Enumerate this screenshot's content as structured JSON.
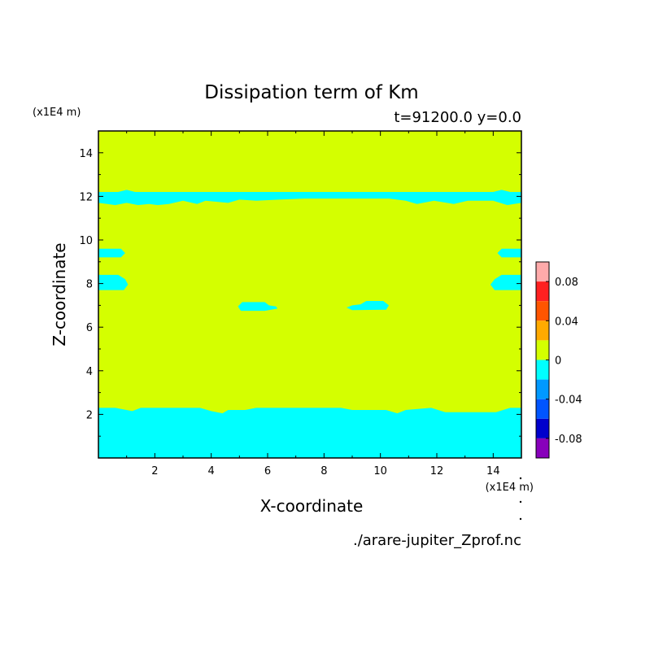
{
  "chart_data": {
    "type": "heatmap",
    "title": "Dissipation term of Km",
    "subtitle": "t=91200.0 y=0.0",
    "xlabel": "X-coordinate",
    "ylabel": "Z-coordinate",
    "x_unit": "(x1E4 m)",
    "y_unit": "(x1E4 m)",
    "source_file": "./arare-jupiter_Zprof.nc",
    "xlim": [
      0,
      15
    ],
    "ylim": [
      0,
      15
    ],
    "x_ticks": [
      "2",
      "4",
      "6",
      "8",
      "10",
      "12",
      "14"
    ],
    "y_ticks": [
      "2",
      "4",
      "6",
      "8",
      "10",
      "12",
      "14"
    ],
    "background_level_color": "#d4ff00",
    "regions": [
      {
        "name": "bottom band",
        "value_range": [
          -0.02,
          0
        ],
        "color": "#00ffff",
        "outline": [
          [
            0,
            0
          ],
          [
            15,
            0
          ],
          [
            15,
            2.3
          ],
          [
            14.6,
            2.3
          ],
          [
            14.1,
            2.1
          ],
          [
            12.3,
            2.1
          ],
          [
            11.8,
            2.3
          ],
          [
            10.9,
            2.2
          ],
          [
            10.6,
            2.05
          ],
          [
            10.2,
            2.2
          ],
          [
            9.0,
            2.2
          ],
          [
            8.6,
            2.3
          ],
          [
            5.6,
            2.3
          ],
          [
            5.2,
            2.2
          ],
          [
            4.6,
            2.2
          ],
          [
            4.4,
            2.05
          ],
          [
            4.0,
            2.15
          ],
          [
            3.6,
            2.3
          ],
          [
            1.5,
            2.3
          ],
          [
            1.2,
            2.15
          ],
          [
            0.6,
            2.3
          ],
          [
            0,
            2.3
          ]
        ]
      },
      {
        "name": "upper band",
        "value_range": [
          -0.02,
          0
        ],
        "color": "#00ffff",
        "outline": [
          [
            0,
            12.2
          ],
          [
            0.7,
            12.2
          ],
          [
            1.0,
            12.3
          ],
          [
            1.3,
            12.2
          ],
          [
            14.0,
            12.2
          ],
          [
            14.3,
            12.3
          ],
          [
            14.6,
            12.2
          ],
          [
            15,
            12.2
          ],
          [
            15,
            11.7
          ],
          [
            14.5,
            11.6
          ],
          [
            14.0,
            11.8
          ],
          [
            13.1,
            11.8
          ],
          [
            12.6,
            11.65
          ],
          [
            11.9,
            11.8
          ],
          [
            11.3,
            11.65
          ],
          [
            10.9,
            11.8
          ],
          [
            10.3,
            11.9
          ],
          [
            7.3,
            11.9
          ],
          [
            6.4,
            11.85
          ],
          [
            5.6,
            11.8
          ],
          [
            5.0,
            11.85
          ],
          [
            4.6,
            11.7
          ],
          [
            3.8,
            11.8
          ],
          [
            3.5,
            11.65
          ],
          [
            3.0,
            11.8
          ],
          [
            2.5,
            11.65
          ],
          [
            2.1,
            11.6
          ],
          [
            1.8,
            11.65
          ],
          [
            1.4,
            11.6
          ],
          [
            1.0,
            11.7
          ],
          [
            0.6,
            11.6
          ],
          [
            0,
            11.7
          ]
        ]
      },
      {
        "name": "left blob 9.4",
        "value_range": [
          -0.02,
          0
        ],
        "color": "#00ffff",
        "outline": [
          [
            0,
            9.2
          ],
          [
            0,
            9.6
          ],
          [
            0.8,
            9.6
          ],
          [
            0.95,
            9.4
          ],
          [
            0.8,
            9.2
          ]
        ]
      },
      {
        "name": "right blob 9.4",
        "value_range": [
          -0.02,
          0
        ],
        "color": "#00ffff",
        "outline": [
          [
            15,
            9.2
          ],
          [
            15,
            9.6
          ],
          [
            14.3,
            9.6
          ],
          [
            14.15,
            9.4
          ],
          [
            14.3,
            9.2
          ]
        ]
      },
      {
        "name": "left blob 8",
        "value_range": [
          -0.02,
          0
        ],
        "color": "#00ffff",
        "outline": [
          [
            0,
            7.7
          ],
          [
            0,
            8.4
          ],
          [
            0.7,
            8.4
          ],
          [
            0.95,
            8.2
          ],
          [
            1.05,
            7.95
          ],
          [
            0.9,
            7.7
          ]
        ]
      },
      {
        "name": "right blob 8",
        "value_range": [
          -0.02,
          0
        ],
        "color": "#00ffff",
        "outline": [
          [
            15,
            7.7
          ],
          [
            15,
            8.4
          ],
          [
            14.3,
            8.4
          ],
          [
            14.05,
            8.2
          ],
          [
            13.9,
            7.95
          ],
          [
            14.05,
            7.7
          ]
        ]
      },
      {
        "name": "center-left blob",
        "value_range": [
          -0.02,
          0
        ],
        "color": "#00ffff",
        "outline": [
          [
            4.95,
            6.95
          ],
          [
            5.1,
            7.15
          ],
          [
            5.9,
            7.15
          ],
          [
            6.05,
            7.0
          ],
          [
            6.3,
            6.95
          ],
          [
            6.35,
            6.85
          ],
          [
            5.9,
            6.75
          ],
          [
            5.05,
            6.75
          ]
        ]
      },
      {
        "name": "center-right blob",
        "value_range": [
          -0.02,
          0
        ],
        "color": "#00ffff",
        "outline": [
          [
            8.8,
            6.9
          ],
          [
            9.0,
            7.0
          ],
          [
            9.3,
            7.05
          ],
          [
            9.5,
            7.2
          ],
          [
            10.1,
            7.2
          ],
          [
            10.3,
            7.0
          ],
          [
            10.2,
            6.8
          ],
          [
            9.0,
            6.78
          ]
        ]
      }
    ],
    "colorbar": {
      "min": -0.1,
      "max": 0.1,
      "tick_values": [
        0.08,
        0.04,
        0,
        -0.04,
        -0.08
      ],
      "tick_labels": [
        "0.08",
        "0.04",
        "0",
        "-0.04",
        "-0.08"
      ],
      "bins": [
        {
          "range": [
            0.08,
            0.1
          ],
          "color": "#ffaaaa"
        },
        {
          "range": [
            0.06,
            0.08
          ],
          "color": "#ff2020"
        },
        {
          "range": [
            0.04,
            0.06
          ],
          "color": "#ff5500"
        },
        {
          "range": [
            0.02,
            0.04
          ],
          "color": "#ffaa00"
        },
        {
          "range": [
            0.0,
            0.02
          ],
          "color": "#d4ff00"
        },
        {
          "range": [
            -0.02,
            0.0
          ],
          "color": "#00ffff"
        },
        {
          "range": [
            -0.04,
            -0.02
          ],
          "color": "#0099ff"
        },
        {
          "range": [
            -0.06,
            -0.04
          ],
          "color": "#0055ff"
        },
        {
          "range": [
            -0.08,
            -0.06
          ],
          "color": "#0000cc"
        },
        {
          "range": [
            -0.1,
            -0.08
          ],
          "color": "#8800bb"
        }
      ]
    }
  }
}
